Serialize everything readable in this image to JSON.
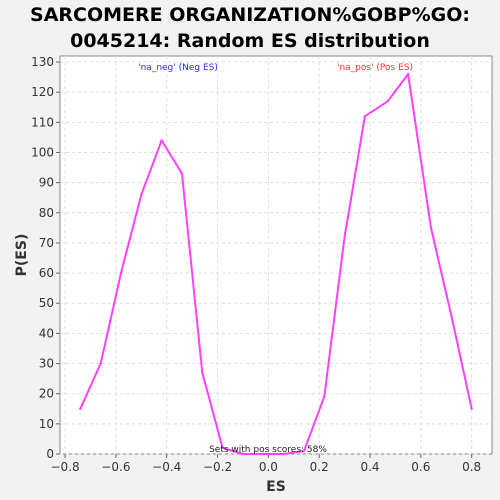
{
  "chart_data": {
    "type": "line",
    "title_line1": "SARCOMERE ORGANIZATION%GOBP%GO:",
    "title_line2": "0045214: Random ES distribution",
    "xlabel": "ES",
    "ylabel": "P(ES)",
    "xlim": [
      -0.82,
      0.88
    ],
    "ylim": [
      0,
      132
    ],
    "xticks": [
      -0.8,
      -0.6,
      -0.4,
      -0.2,
      0.0,
      0.2,
      0.4,
      0.6,
      0.8
    ],
    "xtick_labels": [
      "−0.8",
      "−0.6",
      "−0.4",
      "−0.2",
      "0.0",
      "0.2",
      "0.4",
      "0.6",
      "0.8"
    ],
    "yticks": [
      0,
      10,
      20,
      30,
      40,
      50,
      60,
      70,
      80,
      90,
      100,
      110,
      120,
      130
    ],
    "grid": true,
    "series": [
      {
        "color": "#ff40ff",
        "x": [
          -0.74,
          -0.66,
          -0.58,
          -0.5,
          -0.42,
          -0.34,
          -0.26,
          -0.18,
          -0.1,
          -0.02,
          0.06,
          0.14,
          0.22,
          0.3,
          0.38,
          0.47,
          0.55,
          0.64,
          0.72,
          0.8
        ],
        "y": [
          15,
          30,
          60,
          86,
          104,
          93,
          27,
          2,
          0,
          0,
          0,
          1,
          19,
          72,
          112,
          117,
          126,
          75,
          46,
          15
        ]
      }
    ],
    "annotations": {
      "neg_label": "'na_neg' (Neg ES)",
      "neg_color": "#2a2aff",
      "pos_label": "'na_pos' (Pos ES)",
      "pos_color": "#ff3030",
      "footer": "Sets with pos scores: 58%"
    }
  }
}
